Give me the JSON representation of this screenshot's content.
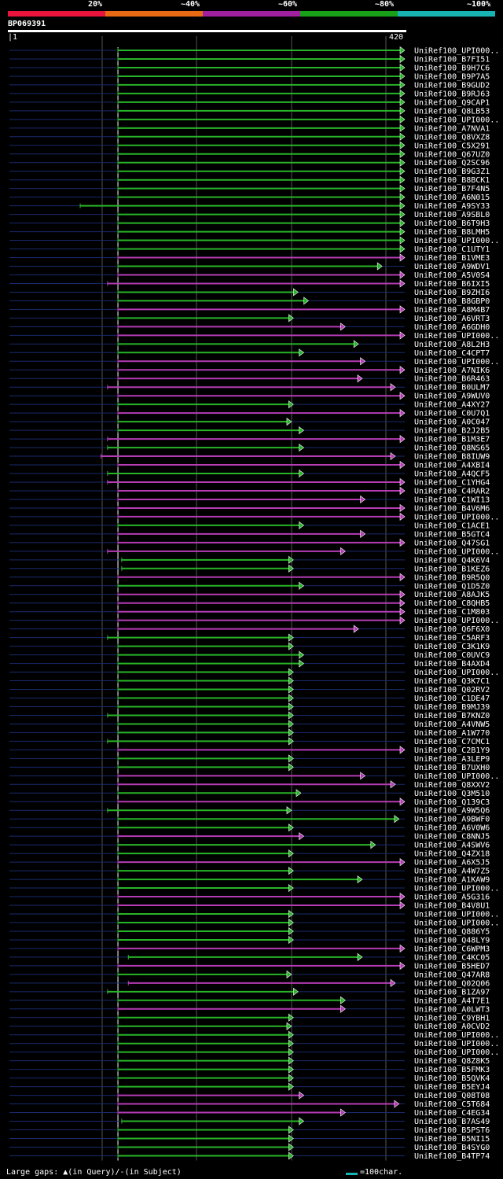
{
  "legend": {
    "labels": [
      "20%",
      "~40%",
      "~60%",
      "~80%",
      "~100%"
    ],
    "colors": [
      "#e8143c",
      "#e86a14",
      "#a020a0",
      "#18a018",
      "#18b4b4"
    ]
  },
  "query": {
    "id": "BP069391",
    "start": "1",
    "end": "420"
  },
  "colors": {
    "green": "#28b428",
    "magenta": "#b43cb4",
    "background_line": "#1a2a6e",
    "grid": "#555555",
    "white": "#ffffff"
  },
  "chart_data": {
    "type": "alignment-overview",
    "title": "BP069391",
    "query_length": 420,
    "axis_ticks": [
      "1",
      "420"
    ],
    "hits": [
      {
        "name": "UniRef100_UPI000..",
        "start": 116,
        "end": 420,
        "identity": "~80%"
      },
      {
        "name": "UniRef100_B7FI51",
        "start": 116,
        "end": 420,
        "identity": "~80%"
      },
      {
        "name": "UniRef100_B9H7C6",
        "start": 116,
        "end": 420,
        "identity": "~80%"
      },
      {
        "name": "UniRef100_B9P7A5",
        "start": 116,
        "end": 420,
        "identity": "~80%"
      },
      {
        "name": "UniRef100_B9GUD2",
        "start": 116,
        "end": 420,
        "identity": "~80%"
      },
      {
        "name": "UniRef100_B9RJ63",
        "start": 116,
        "end": 420,
        "identity": "~80%"
      },
      {
        "name": "UniRef100_Q9CAP1",
        "start": 116,
        "end": 420,
        "identity": "~80%"
      },
      {
        "name": "UniRef100_Q8LB53",
        "start": 116,
        "end": 420,
        "identity": "~80%"
      },
      {
        "name": "UniRef100_UPI000..",
        "start": 116,
        "end": 420,
        "identity": "~80%"
      },
      {
        "name": "UniRef100_A7NVA1",
        "start": 116,
        "end": 420,
        "identity": "~80%"
      },
      {
        "name": "UniRef100_Q8VXZ8",
        "start": 116,
        "end": 420,
        "identity": "~80%"
      },
      {
        "name": "UniRef100_C5X291",
        "start": 116,
        "end": 420,
        "identity": "~80%"
      },
      {
        "name": "UniRef100_Q67UZ0",
        "start": 116,
        "end": 420,
        "identity": "~80%"
      },
      {
        "name": "UniRef100_Q2SC96",
        "start": 116,
        "end": 420,
        "identity": "~80%"
      },
      {
        "name": "UniRef100_B9G3Z1",
        "start": 116,
        "end": 420,
        "identity": "~80%"
      },
      {
        "name": "UniRef100_B8BCK1",
        "start": 116,
        "end": 420,
        "identity": "~80%"
      },
      {
        "name": "UniRef100_B7F4N5",
        "start": 116,
        "end": 420,
        "identity": "~80%"
      },
      {
        "name": "UniRef100_A6N015",
        "start": 116,
        "end": 420,
        "identity": "~80%"
      },
      {
        "name": "UniRef100_A9SY33",
        "start": 76,
        "end": 420,
        "identity": "~80%"
      },
      {
        "name": "UniRef100_A9SBL0",
        "start": 116,
        "end": 420,
        "identity": "~80%"
      },
      {
        "name": "UniRef100_B6T9H3",
        "start": 116,
        "end": 420,
        "identity": "~80%"
      },
      {
        "name": "UniRef100_B8LMH5",
        "start": 116,
        "end": 420,
        "identity": "~80%"
      },
      {
        "name": "UniRef100_UPI000..",
        "start": 116,
        "end": 420,
        "identity": "~80%"
      },
      {
        "name": "UniRef100_C1UTY1",
        "start": 116,
        "end": 420,
        "identity": "~80%"
      },
      {
        "name": "UniRef100_B1VME3",
        "start": 116,
        "end": 420,
        "identity": "~60%"
      },
      {
        "name": "UniRef100_A9WDV1",
        "start": 116,
        "end": 396,
        "identity": "~80%"
      },
      {
        "name": "UniRef100_A5V0S4",
        "start": 116,
        "end": 420,
        "identity": "~60%"
      },
      {
        "name": "UniRef100_B6IXI5",
        "start": 105,
        "end": 420,
        "identity": "~60%"
      },
      {
        "name": "UniRef100_B9ZHI6",
        "start": 116,
        "end": 307,
        "identity": "~80%"
      },
      {
        "name": "UniRef100_B8GBP0",
        "start": 116,
        "end": 318,
        "identity": "~80%"
      },
      {
        "name": "UniRef100_A8M4B7",
        "start": 116,
        "end": 420,
        "identity": "~60%"
      },
      {
        "name": "UniRef100_A6VRT3",
        "start": 116,
        "end": 302,
        "identity": "~80%"
      },
      {
        "name": "UniRef100_A6GDH0",
        "start": 116,
        "end": 357,
        "identity": "~60%"
      },
      {
        "name": "UniRef100_UPI000..",
        "start": 116,
        "end": 420,
        "identity": "~60%"
      },
      {
        "name": "UniRef100_A8L2H3",
        "start": 116,
        "end": 371,
        "identity": "~80%"
      },
      {
        "name": "UniRef100_C4CPT7",
        "start": 116,
        "end": 313,
        "identity": "~80%"
      },
      {
        "name": "UniRef100_UPI000..",
        "start": 116,
        "end": 378,
        "identity": "~60%"
      },
      {
        "name": "UniRef100_A7NIK6",
        "start": 116,
        "end": 420,
        "identity": "~60%"
      },
      {
        "name": "UniRef100_B6R463",
        "start": 116,
        "end": 375,
        "identity": "~60%"
      },
      {
        "name": "UniRef100_B0ULM7",
        "start": 105,
        "end": 410,
        "identity": "~60%"
      },
      {
        "name": "UniRef100_A9WUV0",
        "start": 116,
        "end": 420,
        "identity": "~60%"
      },
      {
        "name": "UniRef100_A4XY27",
        "start": 116,
        "end": 302,
        "identity": "~80%"
      },
      {
        "name": "UniRef100_C0U7Q1",
        "start": 116,
        "end": 420,
        "identity": "~60%"
      },
      {
        "name": "UniRef100_A0C047",
        "start": 116,
        "end": 300,
        "identity": "~80%"
      },
      {
        "name": "UniRef100_B2J2B5",
        "start": 116,
        "end": 313,
        "identity": "~80%"
      },
      {
        "name": "UniRef100_B1M3E7",
        "start": 105,
        "end": 420,
        "identity": "~60%"
      },
      {
        "name": "UniRef100_Q8NS65",
        "start": 105,
        "end": 313,
        "identity": "~80%"
      },
      {
        "name": "UniRef100_B8IUW9",
        "start": 98,
        "end": 410,
        "identity": "~60%"
      },
      {
        "name": "UniRef100_A4XBI4",
        "start": 116,
        "end": 420,
        "identity": "~60%"
      },
      {
        "name": "UniRef100_A4QCF5",
        "start": 105,
        "end": 313,
        "identity": "~80%"
      },
      {
        "name": "UniRef100_C1YHG4",
        "start": 105,
        "end": 420,
        "identity": "~60%"
      },
      {
        "name": "UniRef100_C4RAR2",
        "start": 116,
        "end": 420,
        "identity": "~60%"
      },
      {
        "name": "UniRef100_C1WI13",
        "start": 116,
        "end": 378,
        "identity": "~60%"
      },
      {
        "name": "UniRef100_B4V6M6",
        "start": 116,
        "end": 420,
        "identity": "~60%"
      },
      {
        "name": "UniRef100_UPI000..",
        "start": 116,
        "end": 420,
        "identity": "~60%"
      },
      {
        "name": "UniRef100_C1ACE1",
        "start": 116,
        "end": 313,
        "identity": "~80%"
      },
      {
        "name": "UniRef100_B5GTC4",
        "start": 116,
        "end": 378,
        "identity": "~60%"
      },
      {
        "name": "UniRef100_Q47SG1",
        "start": 116,
        "end": 420,
        "identity": "~60%"
      },
      {
        "name": "UniRef100_UPI000..",
        "start": 105,
        "end": 357,
        "identity": "~60%"
      },
      {
        "name": "UniRef100_Q4K6V4",
        "start": 120,
        "end": 302,
        "identity": "~80%"
      },
      {
        "name": "UniRef100_B1KEZ6",
        "start": 120,
        "end": 302,
        "identity": "~80%"
      },
      {
        "name": "UniRef100_B9R5Q0",
        "start": 116,
        "end": 420,
        "identity": "~60%"
      },
      {
        "name": "UniRef100_Q1D5Z0",
        "start": 116,
        "end": 313,
        "identity": "~80%"
      },
      {
        "name": "UniRef100_A8AJK5",
        "start": 116,
        "end": 420,
        "identity": "~60%"
      },
      {
        "name": "UniRef100_C8QHB5",
        "start": 116,
        "end": 420,
        "identity": "~60%"
      },
      {
        "name": "UniRef100_C1M803",
        "start": 116,
        "end": 420,
        "identity": "~60%"
      },
      {
        "name": "UniRef100_UPI000..",
        "start": 116,
        "end": 420,
        "identity": "~60%"
      },
      {
        "name": "UniRef100_Q6F6X0",
        "start": 116,
        "end": 371,
        "identity": "~60%"
      },
      {
        "name": "UniRef100_C5ARF3",
        "start": 105,
        "end": 302,
        "identity": "~80%"
      },
      {
        "name": "UniRef100_C3K1K9",
        "start": 116,
        "end": 302,
        "identity": "~80%"
      },
      {
        "name": "UniRef100_C0UVC9",
        "start": 116,
        "end": 313,
        "identity": "~80%"
      },
      {
        "name": "UniRef100_B4AXD4",
        "start": 116,
        "end": 313,
        "identity": "~80%"
      },
      {
        "name": "UniRef100_UPI000..",
        "start": 116,
        "end": 302,
        "identity": "~80%"
      },
      {
        "name": "UniRef100_Q3K7C1",
        "start": 116,
        "end": 302,
        "identity": "~80%"
      },
      {
        "name": "UniRef100_Q02RV2",
        "start": 116,
        "end": 302,
        "identity": "~80%"
      },
      {
        "name": "UniRef100_C1DE47",
        "start": 116,
        "end": 302,
        "identity": "~80%"
      },
      {
        "name": "UniRef100_B9MJ39",
        "start": 116,
        "end": 302,
        "identity": "~80%"
      },
      {
        "name": "UniRef100_B7KNZ0",
        "start": 105,
        "end": 302,
        "identity": "~80%"
      },
      {
        "name": "UniRef100_A4VNW5",
        "start": 116,
        "end": 302,
        "identity": "~80%"
      },
      {
        "name": "UniRef100_A1W770",
        "start": 116,
        "end": 302,
        "identity": "~80%"
      },
      {
        "name": "UniRef100_C7CMC1",
        "start": 105,
        "end": 302,
        "identity": "~80%"
      },
      {
        "name": "UniRef100_C2B1Y9",
        "start": 116,
        "end": 420,
        "identity": "~60%"
      },
      {
        "name": "UniRef100_A3LEP9",
        "start": 116,
        "end": 302,
        "identity": "~80%"
      },
      {
        "name": "UniRef100_B7UXH0",
        "start": 116,
        "end": 302,
        "identity": "~80%"
      },
      {
        "name": "UniRef100_UPI000..",
        "start": 116,
        "end": 378,
        "identity": "~60%"
      },
      {
        "name": "UniRef100_Q8XXV2",
        "start": 116,
        "end": 410,
        "identity": "~60%"
      },
      {
        "name": "UniRef100_Q3M510",
        "start": 116,
        "end": 310,
        "identity": "~80%"
      },
      {
        "name": "UniRef100_Q139C3",
        "start": 116,
        "end": 420,
        "identity": "~60%"
      },
      {
        "name": "UniRef100_A9W5Q6",
        "start": 105,
        "end": 300,
        "identity": "~80%"
      },
      {
        "name": "UniRef100_A9BWF0",
        "start": 116,
        "end": 414,
        "identity": "~80%"
      },
      {
        "name": "UniRef100_A6V0W6",
        "start": 116,
        "end": 302,
        "identity": "~80%"
      },
      {
        "name": "UniRef100_C8NNJ5",
        "start": 116,
        "end": 313,
        "identity": "~60%"
      },
      {
        "name": "UniRef100_A4SWV6",
        "start": 116,
        "end": 389,
        "identity": "~80%"
      },
      {
        "name": "UniRef100_Q4ZX18",
        "start": 116,
        "end": 302,
        "identity": "~80%"
      },
      {
        "name": "UniRef100_A6X5J5",
        "start": 116,
        "end": 420,
        "identity": "~60%"
      },
      {
        "name": "UniRef100_A4W7Z5",
        "start": 116,
        "end": 302,
        "identity": "~80%"
      },
      {
        "name": "UniRef100_A1KAW9",
        "start": 116,
        "end": 375,
        "identity": "~80%"
      },
      {
        "name": "UniRef100_UPI000..",
        "start": 116,
        "end": 302,
        "identity": "~80%"
      },
      {
        "name": "UniRef100_A5G316",
        "start": 116,
        "end": 420,
        "identity": "~60%"
      },
      {
        "name": "UniRef100_B4V8U1",
        "start": 116,
        "end": 420,
        "identity": "~60%"
      },
      {
        "name": "UniRef100_UPI000..",
        "start": 116,
        "end": 302,
        "identity": "~80%"
      },
      {
        "name": "UniRef100_UPI000..",
        "start": 116,
        "end": 302,
        "identity": "~80%"
      },
      {
        "name": "UniRef100_Q886Y5",
        "start": 116,
        "end": 302,
        "identity": "~80%"
      },
      {
        "name": "UniRef100_Q48LY9",
        "start": 116,
        "end": 302,
        "identity": "~80%"
      },
      {
        "name": "UniRef100_C6WPM3",
        "start": 116,
        "end": 420,
        "identity": "~60%"
      },
      {
        "name": "UniRef100_C4KC05",
        "start": 127,
        "end": 375,
        "identity": "~80%"
      },
      {
        "name": "UniRef100_B5HED7",
        "start": 116,
        "end": 420,
        "identity": "~60%"
      },
      {
        "name": "UniRef100_Q47AR8",
        "start": 116,
        "end": 300,
        "identity": "~80%"
      },
      {
        "name": "UniRef100_Q02Q06",
        "start": 127,
        "end": 410,
        "identity": "~60%"
      },
      {
        "name": "UniRef100_B1ZA97",
        "start": 105,
        "end": 307,
        "identity": "~80%"
      },
      {
        "name": "UniRef100_A4T7E1",
        "start": 116,
        "end": 357,
        "identity": "~80%"
      },
      {
        "name": "UniRef100_A0LWT3",
        "start": 116,
        "end": 357,
        "identity": "~60%"
      },
      {
        "name": "UniRef100_C9YBH1",
        "start": 116,
        "end": 302,
        "identity": "~80%"
      },
      {
        "name": "UniRef100_A0CVD2",
        "start": 116,
        "end": 300,
        "identity": "~80%"
      },
      {
        "name": "UniRef100_UPI000..",
        "start": 116,
        "end": 302,
        "identity": "~80%"
      },
      {
        "name": "UniRef100_UPI000..",
        "start": 116,
        "end": 302,
        "identity": "~80%"
      },
      {
        "name": "UniRef100_UPI000..",
        "start": 116,
        "end": 302,
        "identity": "~80%"
      },
      {
        "name": "UniRef100_Q8Z8K5",
        "start": 116,
        "end": 302,
        "identity": "~80%"
      },
      {
        "name": "UniRef100_B5FMK3",
        "start": 116,
        "end": 302,
        "identity": "~80%"
      },
      {
        "name": "UniRef100_B5QVK4",
        "start": 116,
        "end": 302,
        "identity": "~80%"
      },
      {
        "name": "UniRef100_B5EYJ4",
        "start": 116,
        "end": 302,
        "identity": "~80%"
      },
      {
        "name": "UniRef100_Q08T08",
        "start": 116,
        "end": 313,
        "identity": "~60%"
      },
      {
        "name": "UniRef100_C5T684",
        "start": 116,
        "end": 414,
        "identity": "~60%"
      },
      {
        "name": "UniRef100_C4EG34",
        "start": 116,
        "end": 357,
        "identity": "~60%"
      },
      {
        "name": "UniRef100_B7AS49",
        "start": 120,
        "end": 313,
        "identity": "~80%"
      },
      {
        "name": "UniRef100_B5PST6",
        "start": 116,
        "end": 302,
        "identity": "~80%"
      },
      {
        "name": "UniRef100_B5NI15",
        "start": 116,
        "end": 302,
        "identity": "~80%"
      },
      {
        "name": "UniRef100_B4SYG0",
        "start": 116,
        "end": 302,
        "identity": "~80%"
      },
      {
        "name": "UniRef100_B4TP74",
        "start": 116,
        "end": 302,
        "identity": "~80%"
      }
    ]
  },
  "footer": {
    "gaps_label": "Large gaps:",
    "gaps_query": "▲(in Query)/",
    "gaps_subject": "-(in Subject)",
    "scale_label": "=100char."
  }
}
